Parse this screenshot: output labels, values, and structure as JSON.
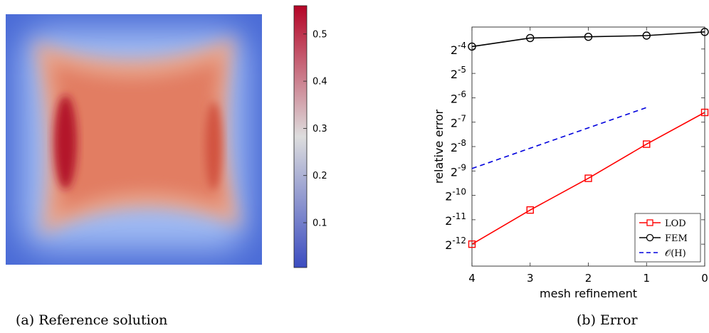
{
  "chart_data": [
    {
      "type": "heatmap",
      "caption": "(a) Reference solution",
      "colorbar": {
        "ticks": [
          "0.1",
          "0.2",
          "0.3",
          "0.4",
          "0.5"
        ],
        "tick_values": [
          0.1,
          0.2,
          0.3,
          0.4,
          0.5
        ],
        "range": [
          0.005,
          0.56
        ],
        "colormap": [
          "#3b4cc0",
          "#dddddd",
          "#b40426"
        ]
      }
    },
    {
      "type": "line",
      "caption": "(b) Error",
      "xlabel": "mesh refinement",
      "ylabel": "relative error",
      "x_ticks": [
        "4",
        "3",
        "2",
        "1",
        "0"
      ],
      "x_reversed": true,
      "xlim": [
        0,
        4
      ],
      "y_scale": "log2",
      "y_ticks": [
        "-4",
        "-5",
        "-6",
        "-7",
        "-8",
        "-9",
        "-10",
        "-11",
        "-12"
      ],
      "y_tick_base": "2",
      "ylim_exponent": [
        -12.9,
        -3.1
      ],
      "legend_position": "bottom-right",
      "series": [
        {
          "name": "LOD",
          "color": "#ff0000",
          "marker": "square",
          "dash": "solid",
          "x": [
            4,
            3,
            2,
            1,
            0
          ],
          "y_exponent": [
            -12.0,
            -10.6,
            -9.3,
            -7.9,
            -6.6
          ]
        },
        {
          "name": "FEM",
          "color": "#000000",
          "marker": "circle",
          "dash": "solid",
          "x": [
            4,
            3,
            2,
            1,
            0
          ],
          "y_exponent": [
            -3.9,
            -3.55,
            -3.5,
            -3.45,
            -3.3
          ]
        },
        {
          "name": "𝒪(H)",
          "color": "#0000dd",
          "marker": "none",
          "dash": "dashed",
          "x": [
            4,
            1
          ],
          "y_exponent": [
            -8.9,
            -6.4
          ]
        }
      ]
    }
  ]
}
